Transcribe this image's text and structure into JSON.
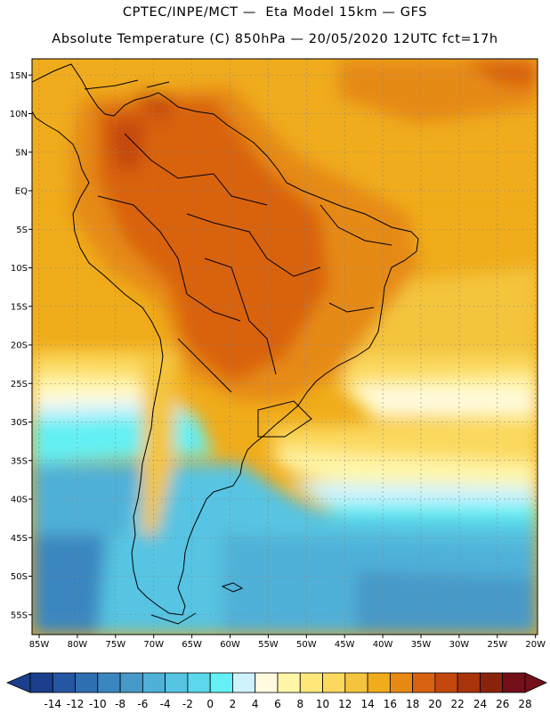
{
  "header": {
    "line1": "CPTEC/INPE/MCT —  Eta Model 15km — GFS",
    "line2": "Absolute Temperature (C) 850hPa — 20/05/2020 12UTC fct=17h"
  },
  "map": {
    "lat_labels": [
      "15N",
      "10N",
      "5N",
      "EQ",
      "5S",
      "10S",
      "15S",
      "20S",
      "25S",
      "30S",
      "35S",
      "40S",
      "45S",
      "50S",
      "55S"
    ],
    "lon_labels": [
      "85W",
      "80W",
      "75W",
      "70W",
      "65W",
      "60W",
      "55W",
      "50W",
      "45W",
      "40W",
      "35W",
      "30W",
      "25W",
      "20W"
    ],
    "lat_values": [
      15,
      10,
      5,
      0,
      -5,
      -10,
      -15,
      -20,
      -25,
      -30,
      -35,
      -40,
      -45,
      -50,
      -55
    ],
    "lon_values": [
      -85,
      -80,
      -75,
      -70,
      -65,
      -60,
      -55,
      -50,
      -45,
      -40,
      -35,
      -30,
      -25,
      -20
    ]
  },
  "colorbar": {
    "labels": [
      "-14",
      "-12",
      "-10",
      "-8",
      "-6",
      "-4",
      "-2",
      "0",
      "2",
      "4",
      "6",
      "8",
      "10",
      "12",
      "14",
      "16",
      "18",
      "20",
      "22",
      "24",
      "26",
      "28"
    ],
    "colors": [
      "#1b3f8c",
      "#2456a3",
      "#2e6fb2",
      "#3a86c0",
      "#4699c8",
      "#4fb0d8",
      "#56c4e2",
      "#5cd7ec",
      "#64f0f4",
      "#cff2fc",
      "#fffae0",
      "#fff6a8",
      "#ffe87a",
      "#fbd95e",
      "#f4c43e",
      "#f0ac1a",
      "#e68a14",
      "#d96210",
      "#c4480e",
      "#a8340c",
      "#8a230e",
      "#73101a"
    ]
  }
}
